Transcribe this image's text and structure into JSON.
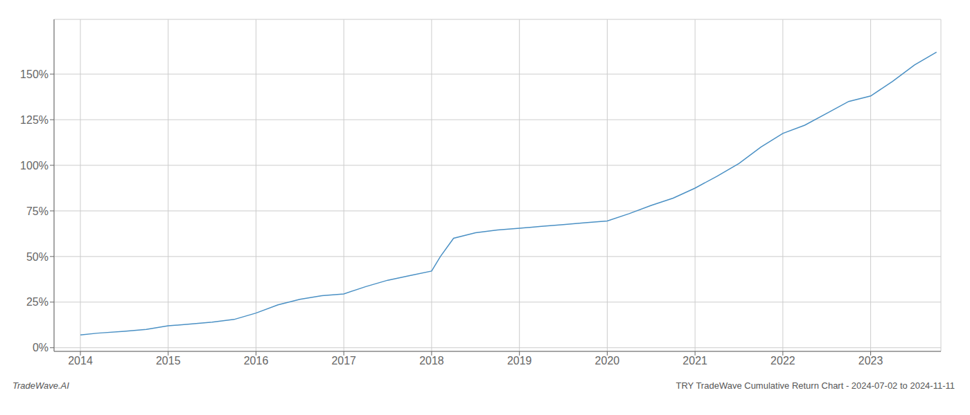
{
  "chart_data": {
    "type": "line",
    "title": "TRY TradeWave Cumulative Return Chart - 2024-07-02 to 2024-11-11",
    "annotations": [
      "TradeWave.AI"
    ],
    "color": "#4a90c4",
    "grid": true,
    "x": [
      2014.0,
      2014.2,
      2014.5,
      2014.75,
      2015.0,
      2015.25,
      2015.5,
      2015.75,
      2016.0,
      2016.25,
      2016.5,
      2016.75,
      2017.0,
      2017.25,
      2017.5,
      2017.75,
      2018.0,
      2018.1,
      2018.25,
      2018.5,
      2018.75,
      2019.0,
      2019.25,
      2019.5,
      2019.75,
      2020.0,
      2020.25,
      2020.5,
      2020.75,
      2021.0,
      2021.25,
      2021.5,
      2021.75,
      2022.0,
      2022.25,
      2022.5,
      2022.75,
      2023.0,
      2023.25,
      2023.5,
      2023.75
    ],
    "values": [
      0.07,
      0.08,
      0.09,
      0.1,
      0.12,
      0.13,
      0.14,
      0.155,
      0.19,
      0.235,
      0.265,
      0.285,
      0.295,
      0.335,
      0.37,
      0.395,
      0.42,
      0.5,
      0.6,
      0.63,
      0.645,
      0.655,
      0.665,
      0.675,
      0.685,
      0.695,
      0.735,
      0.78,
      0.82,
      0.875,
      0.94,
      1.01,
      1.1,
      1.175,
      1.22,
      1.285,
      1.35,
      1.38,
      1.46,
      1.55,
      1.62
    ],
    "xlim": [
      2013.7,
      2023.8
    ],
    "xticks": [
      2014,
      2015,
      2016,
      2017,
      2018,
      2019,
      2020,
      2021,
      2022,
      2023
    ],
    "ylim": [
      -0.02,
      1.8
    ],
    "yticks": [
      {
        "value": 0.0,
        "label": "0%"
      },
      {
        "value": 0.25,
        "label": "25%"
      },
      {
        "value": 0.5,
        "label": "50%"
      },
      {
        "value": 0.75,
        "label": "75%"
      },
      {
        "value": 1.0,
        "label": "100%"
      },
      {
        "value": 1.25,
        "label": "125%"
      },
      {
        "value": 1.5,
        "label": "150%"
      }
    ]
  }
}
